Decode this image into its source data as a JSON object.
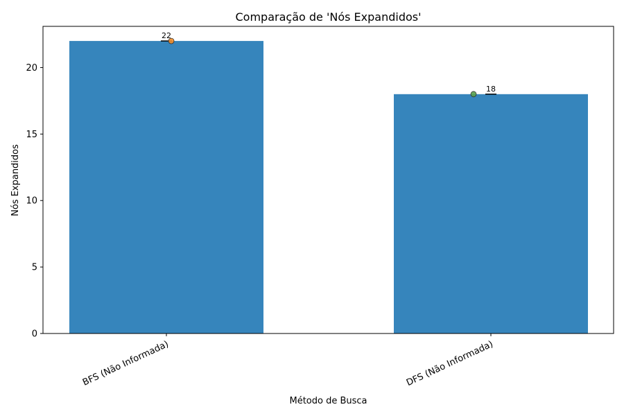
{
  "chart_data": {
    "type": "bar",
    "title": "Comparação de 'Nós Expandidos'",
    "xlabel": "Método de Busca",
    "ylabel": "Nós Expandidos",
    "categories": [
      "BFS (Não Informada)",
      "DFS (Não Informada)"
    ],
    "values": [
      22,
      18
    ],
    "data_labels": [
      "22",
      "18"
    ],
    "ylim": [
      0,
      23.1
    ],
    "yticks": [
      0,
      5,
      10,
      15,
      20
    ],
    "ytick_labels": [
      "0",
      "5",
      "10",
      "15",
      "20"
    ],
    "grid": false,
    "bar_color": "#3685bc",
    "marker_colors": [
      "#f28e2b",
      "#59a14f"
    ],
    "error_bar_color": "#000000"
  }
}
